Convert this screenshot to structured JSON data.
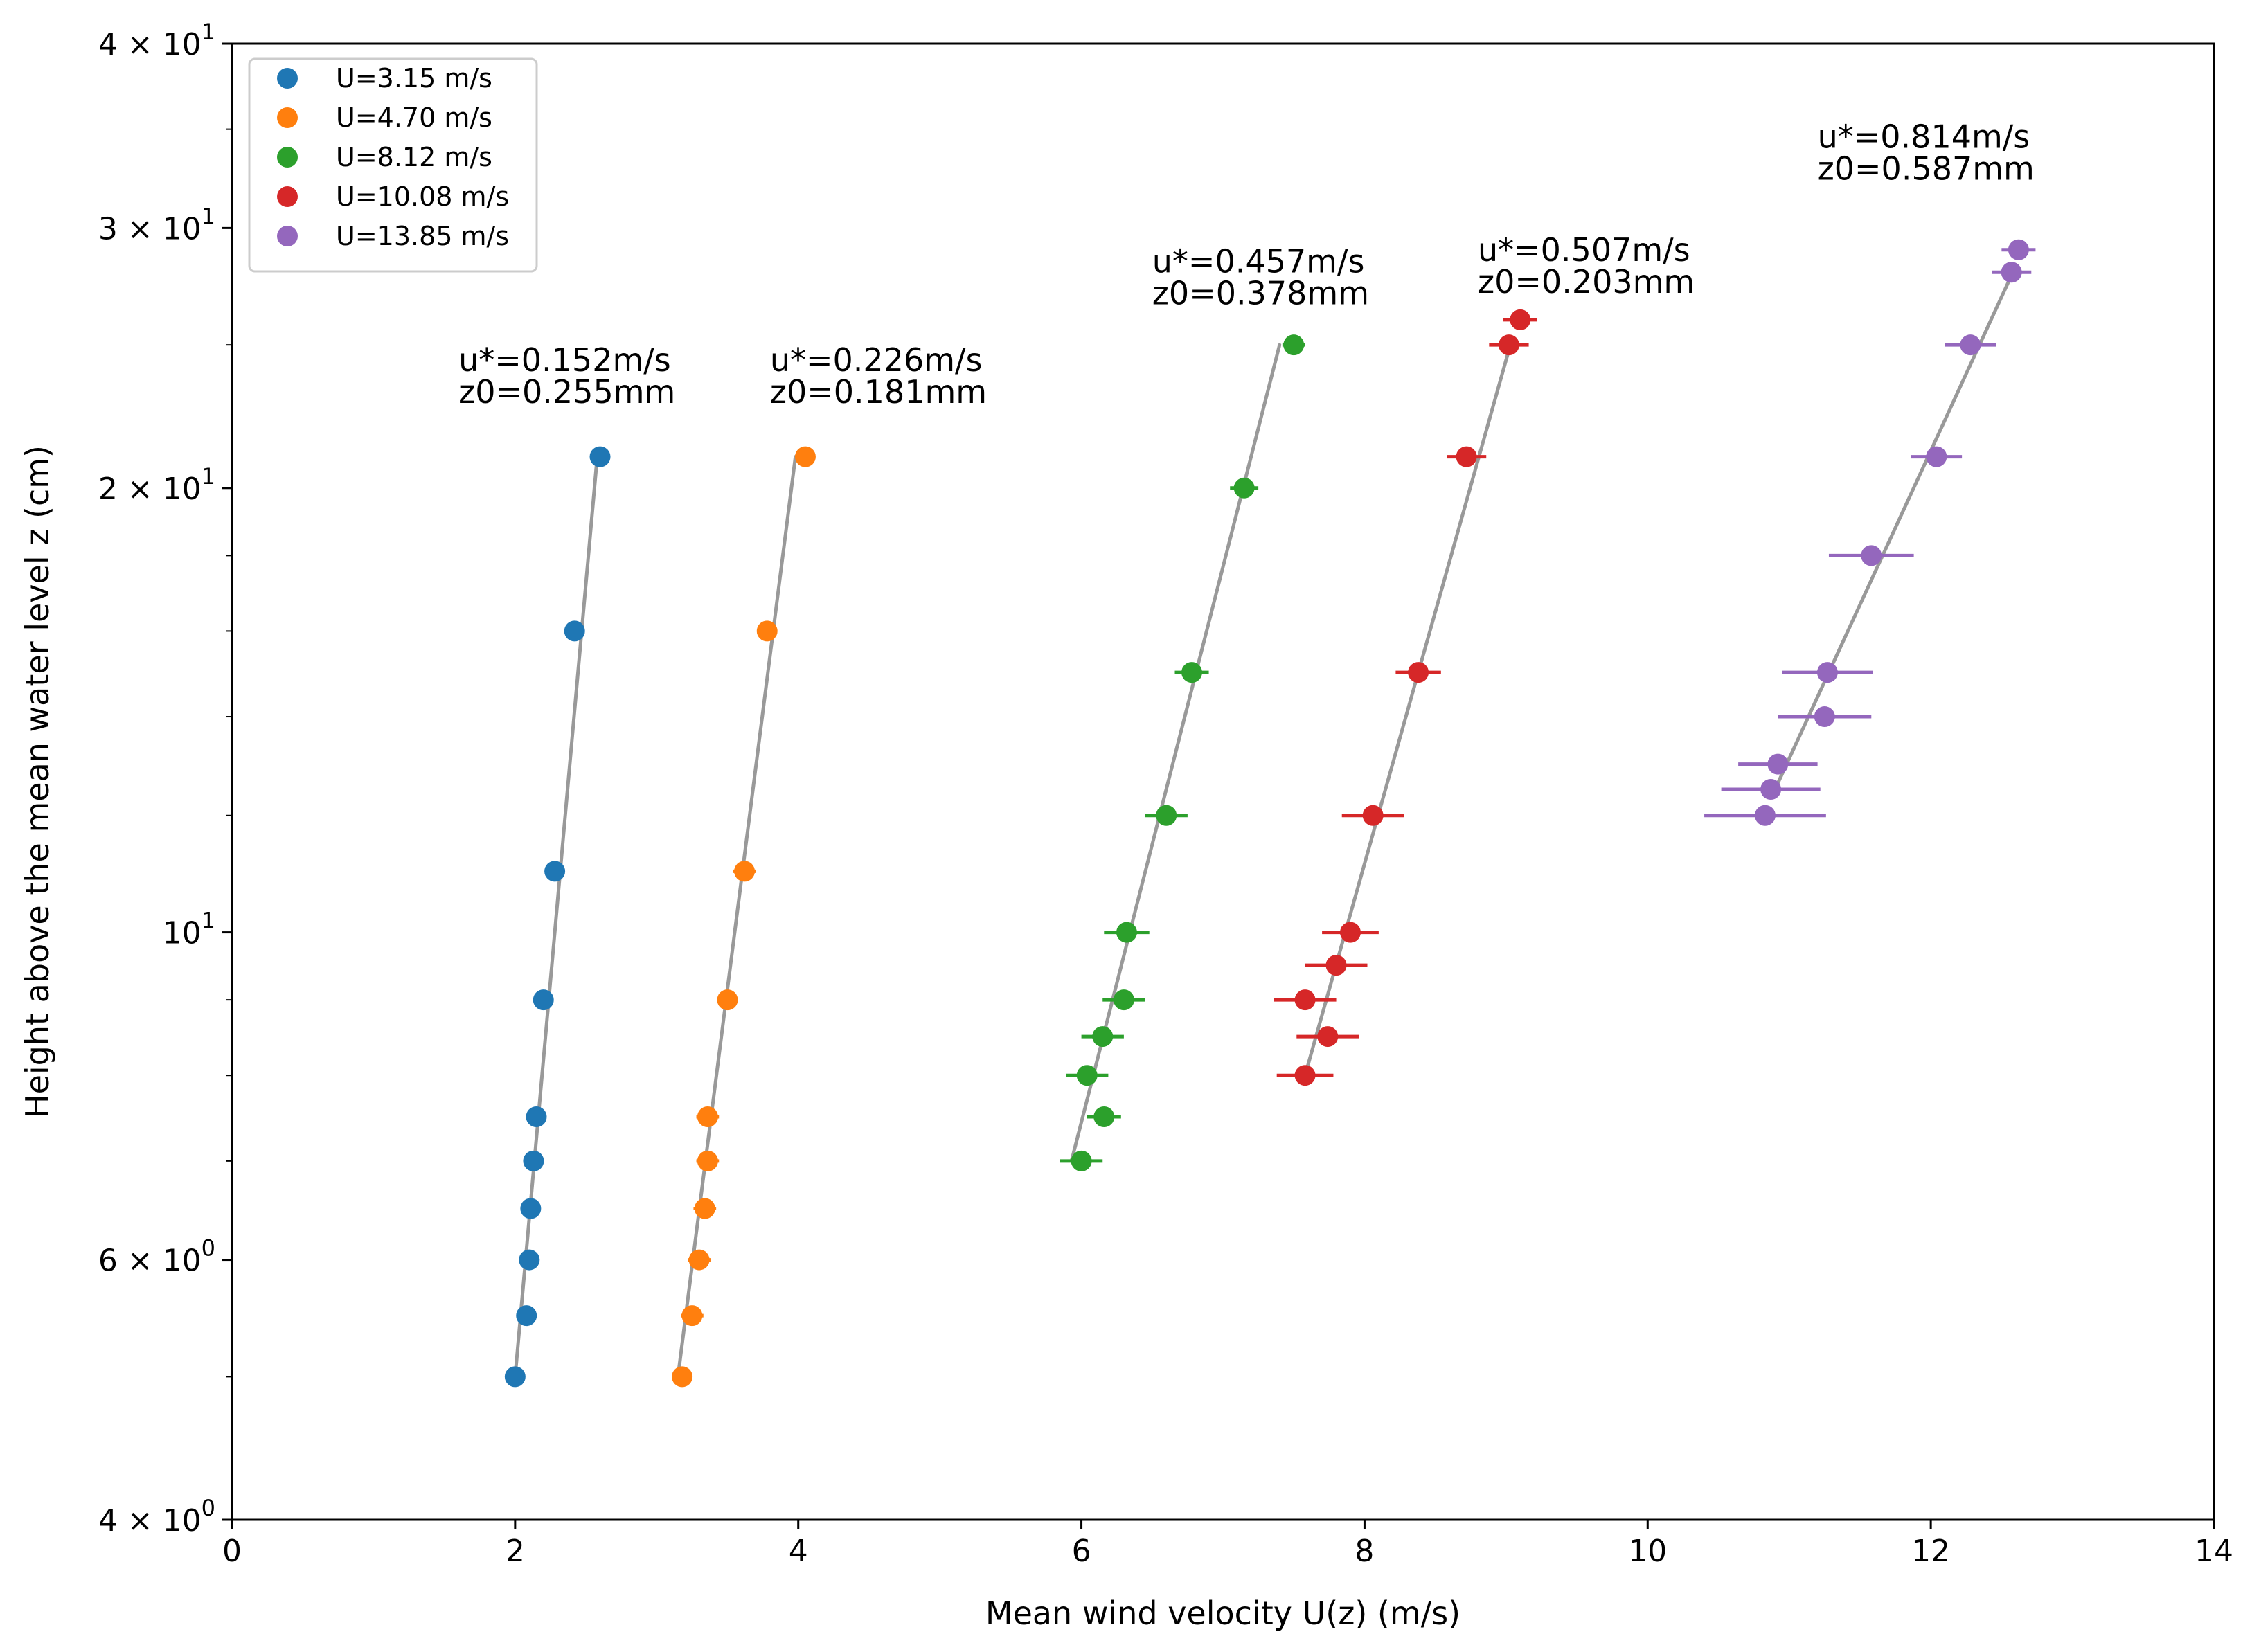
{
  "chart_data": {
    "type": "scatter",
    "title": "",
    "xlabel": "Mean wind velocity U(z) (m/s)",
    "ylabel": "Height above the mean water level z (cm)",
    "xlim": [
      0,
      14
    ],
    "ylim": [
      4,
      40
    ],
    "yscale": "log",
    "grid": false,
    "legend_position": "top-left",
    "x_ticks": [
      {
        "value": 0,
        "label": "0"
      },
      {
        "value": 2,
        "label": "2"
      },
      {
        "value": 4,
        "label": "4"
      },
      {
        "value": 6,
        "label": "6"
      },
      {
        "value": 8,
        "label": "8"
      },
      {
        "value": 10,
        "label": "10"
      },
      {
        "value": 12,
        "label": "12"
      },
      {
        "value": 14,
        "label": "14"
      }
    ],
    "y_ticks": [
      {
        "value": 4,
        "mant": "4",
        "exp": "0"
      },
      {
        "value": 6,
        "mant": "6",
        "exp": "0"
      },
      {
        "value": 10,
        "mant": "",
        "exp": "1"
      },
      {
        "value": 20,
        "mant": "2",
        "exp": "1"
      },
      {
        "value": 30,
        "mant": "3",
        "exp": "1"
      },
      {
        "value": 40,
        "mant": "4",
        "exp": "1"
      }
    ],
    "series": [
      {
        "name": "U=3.15 m/s",
        "color": "#1f77b4",
        "annotation": [
          "u*=0.152m/s",
          "z0=0.255mm"
        ],
        "annotation_anchor": {
          "x": 1.6,
          "z": 24.0
        },
        "fit": {
          "x": [
            2.0,
            2.58
          ],
          "z": [
            5.0,
            21.0
          ]
        },
        "points": [
          {
            "x": 2.6,
            "z": 21.0,
            "err": 0.03
          },
          {
            "x": 2.42,
            "z": 16.0,
            "err": 0.03
          },
          {
            "x": 2.28,
            "z": 11.0,
            "err": 0.03
          },
          {
            "x": 2.2,
            "z": 9.0,
            "err": 0.03
          },
          {
            "x": 2.15,
            "z": 7.5,
            "err": 0.03
          },
          {
            "x": 2.13,
            "z": 7.0,
            "err": 0.03
          },
          {
            "x": 2.11,
            "z": 6.5,
            "err": 0.03
          },
          {
            "x": 2.1,
            "z": 6.0,
            "err": 0.03
          },
          {
            "x": 2.08,
            "z": 5.5,
            "err": 0.03
          },
          {
            "x": 2.0,
            "z": 5.0,
            "err": 0.03
          }
        ]
      },
      {
        "name": "U=4.70 m/s",
        "color": "#ff7f0e",
        "annotation": [
          "u*=0.226m/s",
          "z0=0.181mm"
        ],
        "annotation_anchor": {
          "x": 3.8,
          "z": 24.0
        },
        "fit": {
          "x": [
            3.15,
            3.98
          ],
          "z": [
            5.0,
            21.0
          ]
        },
        "points": [
          {
            "x": 4.05,
            "z": 21.0,
            "err": 0.05
          },
          {
            "x": 3.78,
            "z": 16.0,
            "err": 0.05
          },
          {
            "x": 3.62,
            "z": 11.0,
            "err": 0.08
          },
          {
            "x": 3.5,
            "z": 9.0,
            "err": 0.06
          },
          {
            "x": 3.36,
            "z": 7.5,
            "err": 0.08
          },
          {
            "x": 3.36,
            "z": 7.0,
            "err": 0.08
          },
          {
            "x": 3.34,
            "z": 6.5,
            "err": 0.08
          },
          {
            "x": 3.3,
            "z": 6.0,
            "err": 0.08
          },
          {
            "x": 3.25,
            "z": 5.5,
            "err": 0.08
          },
          {
            "x": 3.18,
            "z": 5.0,
            "err": 0.06
          }
        ]
      },
      {
        "name": "U=8.12 m/s",
        "color": "#2ca02c",
        "annotation": [
          "u*=0.457m/s",
          "z0=0.378mm"
        ],
        "annotation_anchor": {
          "x": 6.5,
          "z": 28.0
        },
        "fit": {
          "x": [
            5.93,
            7.4
          ],
          "z": [
            7.0,
            25.0
          ]
        },
        "points": [
          {
            "x": 7.5,
            "z": 25.0,
            "err": 0.08
          },
          {
            "x": 7.15,
            "z": 20.0,
            "err": 0.1
          },
          {
            "x": 6.78,
            "z": 15.0,
            "err": 0.12
          },
          {
            "x": 6.6,
            "z": 12.0,
            "err": 0.15
          },
          {
            "x": 6.32,
            "z": 10.0,
            "err": 0.16
          },
          {
            "x": 6.3,
            "z": 9.0,
            "err": 0.15
          },
          {
            "x": 6.15,
            "z": 8.5,
            "err": 0.15
          },
          {
            "x": 6.04,
            "z": 8.0,
            "err": 0.15
          },
          {
            "x": 6.16,
            "z": 7.5,
            "err": 0.12
          },
          {
            "x": 6.0,
            "z": 7.0,
            "err": 0.15
          }
        ]
      },
      {
        "name": "U=10.08 m/s",
        "color": "#d62728",
        "annotation": [
          "u*=0.507m/s",
          "z0=0.203mm"
        ],
        "annotation_anchor": {
          "x": 8.8,
          "z": 28.5
        },
        "fit": {
          "x": [
            7.58,
            9.03
          ],
          "z": [
            8.0,
            25.0
          ]
        },
        "points": [
          {
            "x": 9.1,
            "z": 26.0,
            "err": 0.12
          },
          {
            "x": 9.02,
            "z": 25.0,
            "err": 0.14
          },
          {
            "x": 8.72,
            "z": 21.0,
            "err": 0.14
          },
          {
            "x": 8.38,
            "z": 15.0,
            "err": 0.16
          },
          {
            "x": 8.06,
            "z": 12.0,
            "err": 0.22
          },
          {
            "x": 7.9,
            "z": 10.0,
            "err": 0.2
          },
          {
            "x": 7.8,
            "z": 9.5,
            "err": 0.22
          },
          {
            "x": 7.58,
            "z": 9.0,
            "err": 0.22
          },
          {
            "x": 7.74,
            "z": 8.5,
            "err": 0.22
          },
          {
            "x": 7.58,
            "z": 8.0,
            "err": 0.2
          }
        ]
      },
      {
        "name": "U=13.85 m/s",
        "color": "#9467bd",
        "annotation": [
          "u*=0.814m/s",
          "z0=0.587mm"
        ],
        "annotation_anchor": {
          "x": 11.2,
          "z": 34.0
        },
        "fit": {
          "x": [
            10.9,
            12.58
          ],
          "z": [
            12.5,
            28.0
          ]
        },
        "points": [
          {
            "x": 12.62,
            "z": 29.0,
            "err": 0.12
          },
          {
            "x": 12.57,
            "z": 28.0,
            "err": 0.14
          },
          {
            "x": 12.28,
            "z": 25.0,
            "err": 0.18
          },
          {
            "x": 12.04,
            "z": 21.0,
            "err": 0.18
          },
          {
            "x": 11.58,
            "z": 18.0,
            "err": 0.3
          },
          {
            "x": 11.27,
            "z": 15.0,
            "err": 0.32
          },
          {
            "x": 11.25,
            "z": 14.0,
            "err": 0.33
          },
          {
            "x": 10.92,
            "z": 13.0,
            "err": 0.28
          },
          {
            "x": 10.87,
            "z": 12.5,
            "err": 0.35
          },
          {
            "x": 10.83,
            "z": 12.0,
            "err": 0.43
          }
        ]
      }
    ]
  }
}
